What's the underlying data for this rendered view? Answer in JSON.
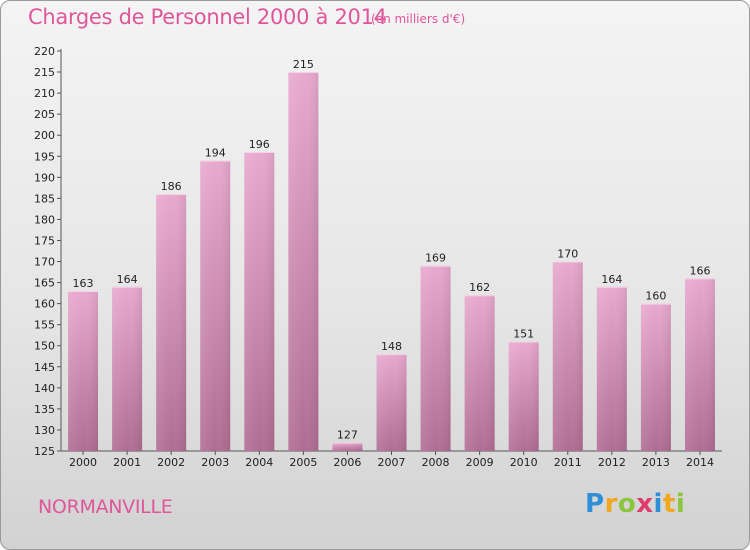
{
  "header": {
    "title": "Charges de Personnel 2000 à 2014",
    "subtitle": "(en milliers d'€)"
  },
  "footer": {
    "city": "NORMANVILLE",
    "logo_letters": [
      {
        "char": "P",
        "color": "#2e8fd8"
      },
      {
        "char": "r",
        "color": "#f0a81e"
      },
      {
        "char": "o",
        "color": "#8cc63e"
      },
      {
        "char": "x",
        "color": "#e23b6e"
      },
      {
        "char": "i",
        "color": "#2e8fd8"
      },
      {
        "char": "t",
        "color": "#f0a81e"
      },
      {
        "char": "i",
        "color": "#8cc63e"
      }
    ]
  },
  "chart_data": {
    "type": "bar",
    "title": "Charges de Personnel 2000 à 2014",
    "subtitle": "(en milliers d'€)",
    "categories": [
      "2000",
      "2001",
      "2002",
      "2003",
      "2004",
      "2005",
      "2006",
      "2007",
      "2008",
      "2009",
      "2010",
      "2011",
      "2012",
      "2013",
      "2014"
    ],
    "values": [
      163,
      164,
      186,
      194,
      196,
      215,
      127,
      148,
      169,
      162,
      151,
      170,
      164,
      160,
      166
    ],
    "ylim": [
      125,
      220
    ],
    "yticks": [
      125,
      130,
      135,
      140,
      145,
      150,
      155,
      160,
      165,
      170,
      175,
      180,
      185,
      190,
      195,
      200,
      205,
      210,
      215,
      220
    ],
    "grid": false,
    "legend": "none",
    "colors": {
      "bar_top": "#e8a9cf",
      "bar_bottom": "#b06d93",
      "axis": "#555555"
    }
  }
}
